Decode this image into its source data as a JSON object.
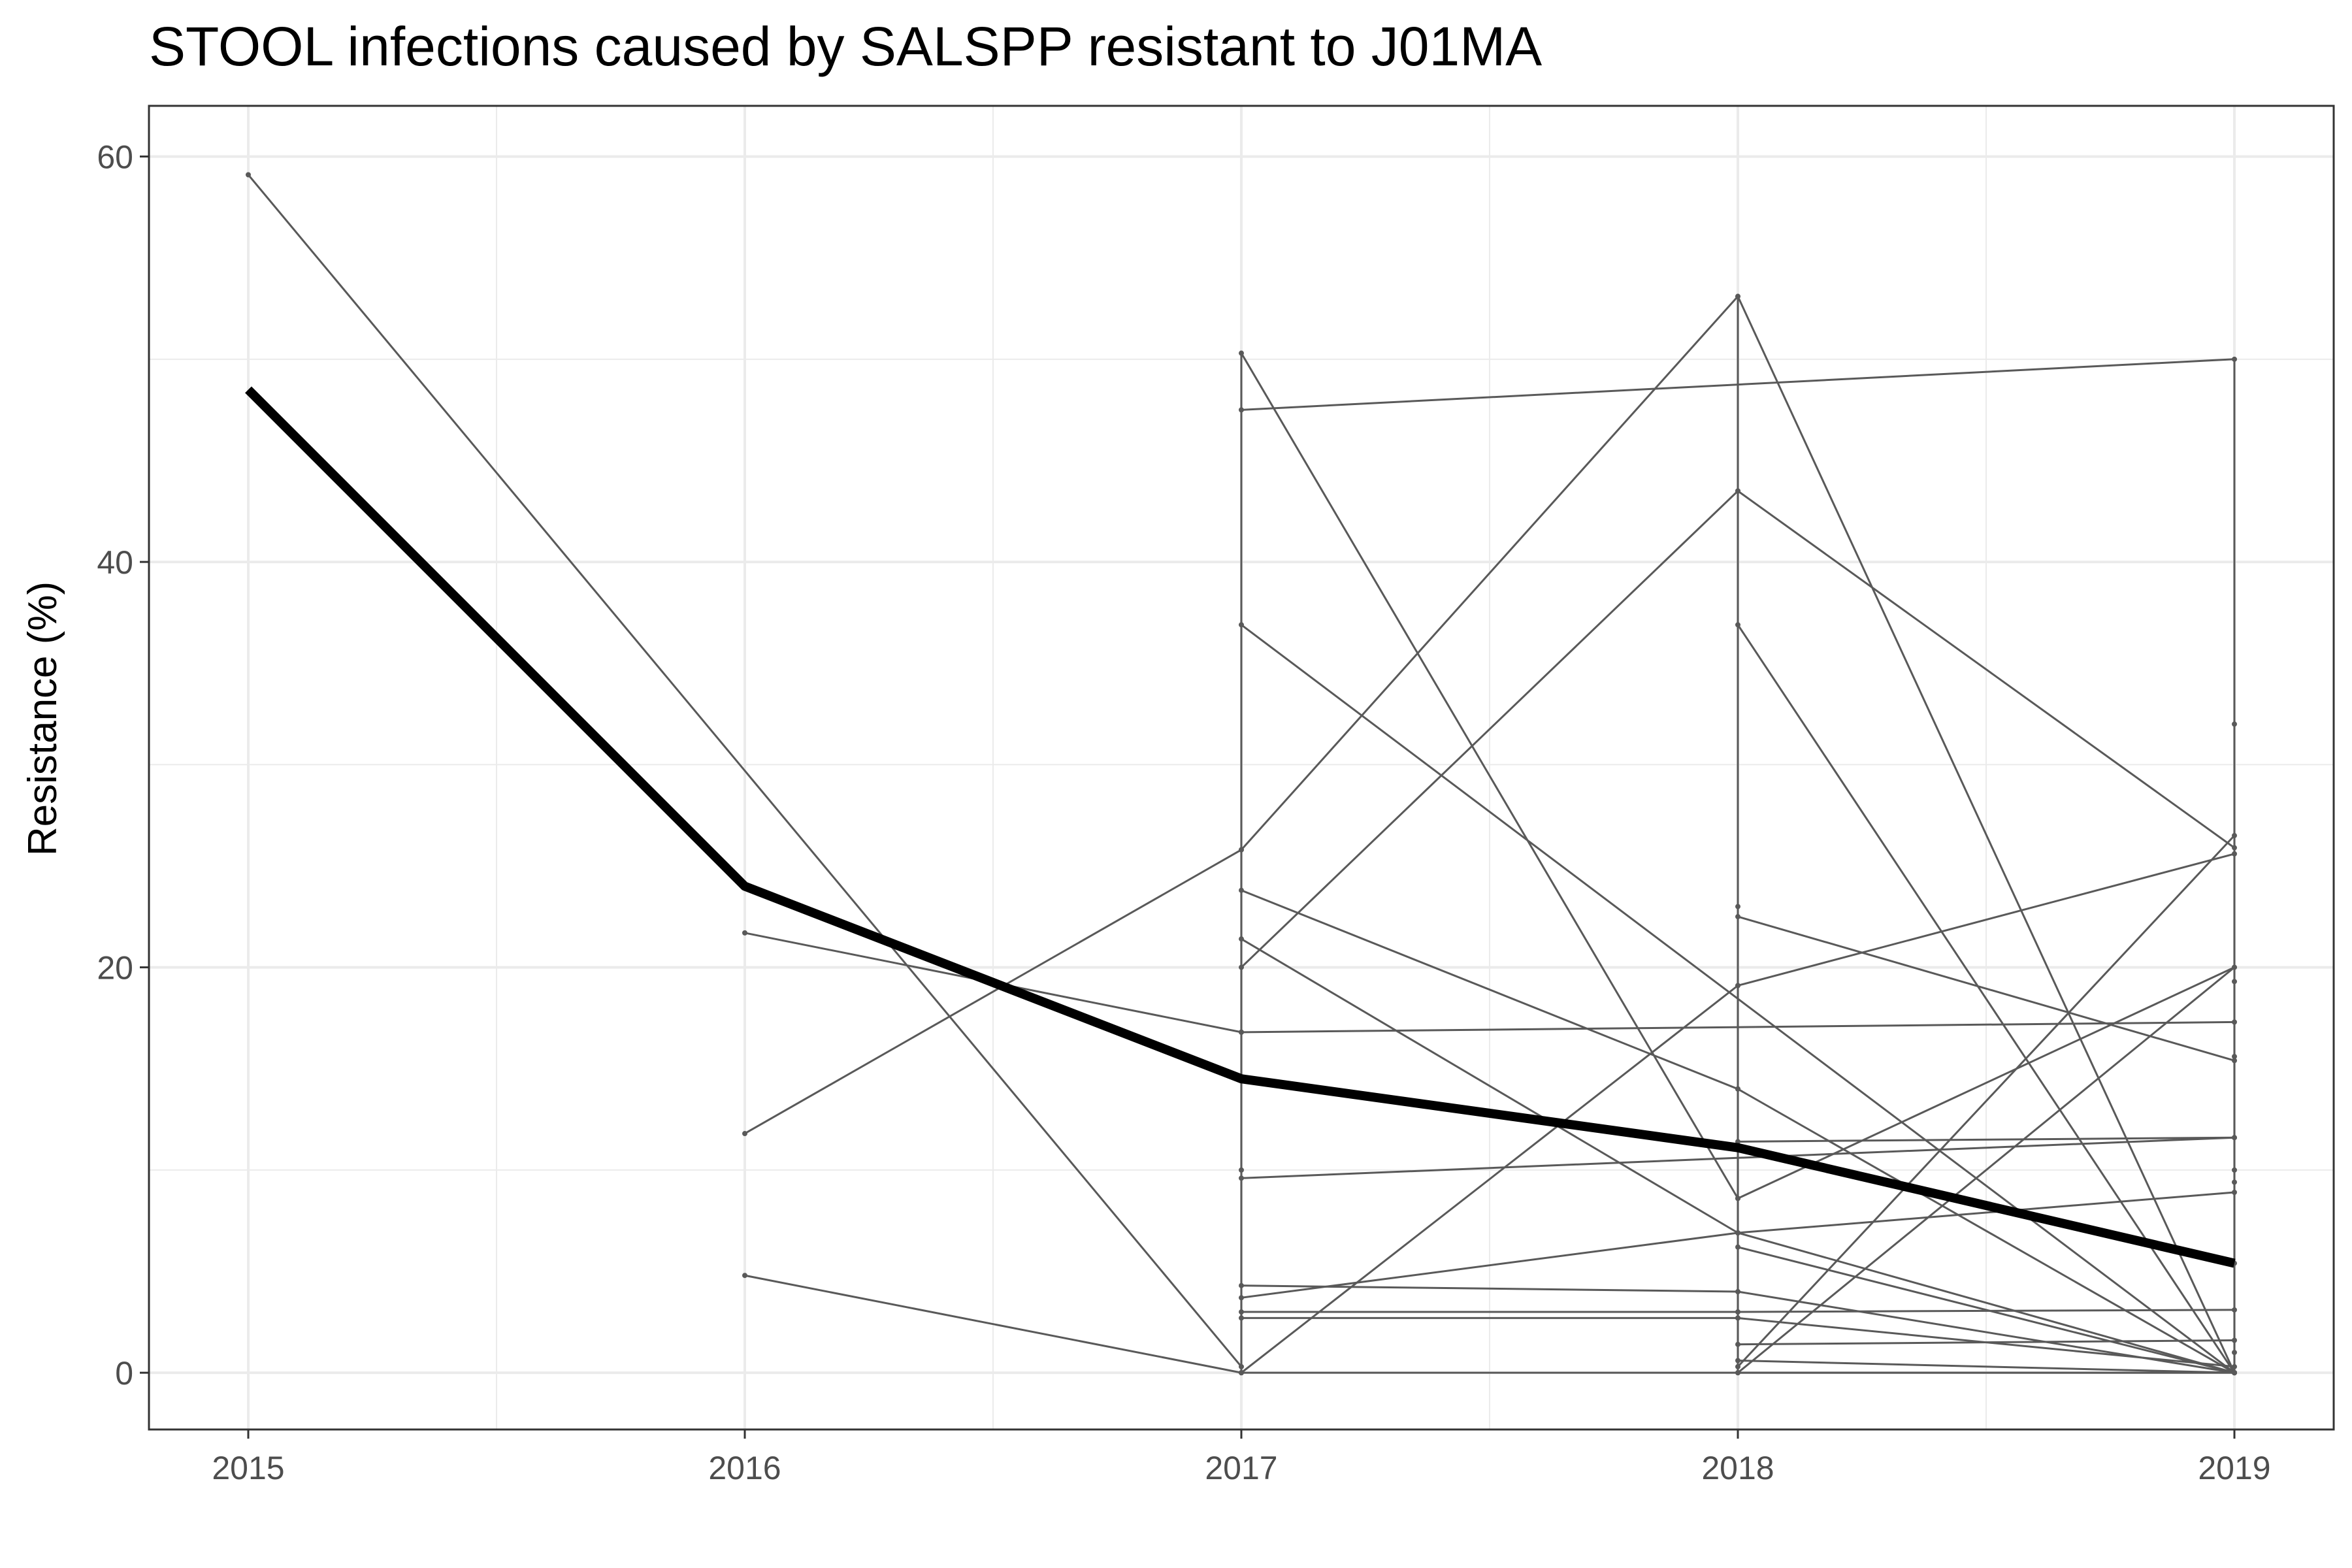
{
  "chart_data": {
    "type": "line",
    "title": "STOOL infections caused by SALSPP resistant to J01MA",
    "xlabel": "",
    "ylabel": "Resistance (%)",
    "xlim": [
      2014.8,
      2019.2
    ],
    "ylim": [
      -2.8,
      62.5
    ],
    "x_ticks": [
      2015,
      2016,
      2017,
      2018,
      2019
    ],
    "x_tick_labels": [
      "2015",
      "2016",
      "2017",
      "2018",
      "2019"
    ],
    "y_ticks": [
      0,
      20,
      40,
      60
    ],
    "y_tick_labels": [
      "0",
      "20",
      "40",
      "60"
    ],
    "grid": true,
    "legend": "none",
    "colors": {
      "series": "#595959",
      "overall": "#000000",
      "grid": "#ebebeb",
      "panel_border": "#333333"
    },
    "overall": {
      "x": [
        2015,
        2016,
        2017,
        2018,
        2019
      ],
      "values": [
        48.5,
        24.0,
        14.5,
        11.1,
        5.4
      ]
    },
    "series": [
      {
        "x": [
          2015,
          2017
        ],
        "values": [
          59.1,
          0.3
        ]
      },
      {
        "x": [
          2016,
          2017
        ],
        "values": [
          21.7,
          16.8
        ]
      },
      {
        "x": [
          2016,
          2017
        ],
        "values": [
          11.8,
          25.8
        ]
      },
      {
        "x": [
          2016,
          2017
        ],
        "values": [
          4.8,
          0.0
        ]
      },
      {
        "x": [
          2017,
          2019
        ],
        "values": [
          47.5,
          50.0
        ]
      },
      {
        "x": [
          2017,
          2018
        ],
        "values": [
          50.3,
          8.6
        ]
      },
      {
        "x": [
          2017,
          2018
        ],
        "values": [
          25.8,
          53.1
        ]
      },
      {
        "x": [
          2017,
          2018
        ],
        "values": [
          20.0,
          43.5
        ]
      },
      {
        "x": [
          2017,
          2019
        ],
        "values": [
          36.9,
          0.0
        ]
      },
      {
        "x": [
          2017,
          2018
        ],
        "values": [
          23.8,
          14.0
        ]
      },
      {
        "x": [
          2017,
          2018
        ],
        "values": [
          21.4,
          6.9
        ]
      },
      {
        "x": [
          2017,
          2019
        ],
        "values": [
          16.8,
          17.3
        ]
      },
      {
        "x": [
          2017,
          2019
        ],
        "values": [
          9.6,
          11.6
        ]
      },
      {
        "x": [
          2017,
          2018
        ],
        "values": [
          4.3,
          4.0
        ]
      },
      {
        "x": [
          2017,
          2018
        ],
        "values": [
          3.7,
          6.9
        ]
      },
      {
        "x": [
          2017,
          2018
        ],
        "values": [
          3.0,
          3.0
        ]
      },
      {
        "x": [
          2017,
          2018
        ],
        "values": [
          2.7,
          2.7
        ]
      },
      {
        "x": [
          2017,
          2018
        ],
        "values": [
          0.0,
          19.1
        ]
      },
      {
        "x": [
          2017,
          2019
        ],
        "values": [
          0.0,
          0.0
        ]
      },
      {
        "x": [
          2018,
          2019
        ],
        "values": [
          53.1,
          0.0
        ]
      },
      {
        "x": [
          2018,
          2019
        ],
        "values": [
          43.5,
          25.9
        ]
      },
      {
        "x": [
          2018,
          2019
        ],
        "values": [
          36.9,
          0.0
        ]
      },
      {
        "x": [
          2018,
          2019
        ],
        "values": [
          22.5,
          15.4
        ]
      },
      {
        "x": [
          2018,
          2019
        ],
        "values": [
          19.1,
          25.6
        ]
      },
      {
        "x": [
          2018,
          2019
        ],
        "values": [
          14.0,
          0.0
        ]
      },
      {
        "x": [
          2018,
          2019
        ],
        "values": [
          11.4,
          11.6
        ]
      },
      {
        "x": [
          2018,
          2019
        ],
        "values": [
          8.6,
          20.0
        ]
      },
      {
        "x": [
          2018,
          2019
        ],
        "values": [
          6.9,
          8.9
        ]
      },
      {
        "x": [
          2018,
          2019
        ],
        "values": [
          6.9,
          0.0
        ]
      },
      {
        "x": [
          2018,
          2019
        ],
        "values": [
          6.2,
          0.0
        ]
      },
      {
        "x": [
          2018,
          2019
        ],
        "values": [
          4.0,
          0.0
        ]
      },
      {
        "x": [
          2018,
          2019
        ],
        "values": [
          3.0,
          3.1
        ]
      },
      {
        "x": [
          2018,
          2019
        ],
        "values": [
          2.7,
          0.3
        ]
      },
      {
        "x": [
          2018,
          2019
        ],
        "values": [
          1.4,
          1.6
        ]
      },
      {
        "x": [
          2018,
          2019
        ],
        "values": [
          0.6,
          0.0
        ]
      },
      {
        "x": [
          2018,
          2019
        ],
        "values": [
          0.3,
          26.5
        ]
      },
      {
        "x": [
          2018,
          2019
        ],
        "values": [
          0.0,
          20.0
        ]
      },
      {
        "x": [
          2018,
          2019
        ],
        "values": [
          0.0,
          0.0
        ]
      }
    ],
    "vertical_ranges": [
      {
        "x": 2017,
        "values": [
          0.0,
          50.3
        ]
      },
      {
        "x": 2018,
        "values": [
          0.0,
          53.1
        ]
      },
      {
        "x": 2019,
        "values": [
          0.0,
          50.0
        ]
      }
    ],
    "extra_points": [
      {
        "x": 2017,
        "value": 10.0
      },
      {
        "x": 2018,
        "value": 23.0
      },
      {
        "x": 2019,
        "value": 32.0
      },
      {
        "x": 2019,
        "value": 19.3
      },
      {
        "x": 2019,
        "value": 15.6
      },
      {
        "x": 2019,
        "value": 10.0
      },
      {
        "x": 2019,
        "value": 9.4
      },
      {
        "x": 2019,
        "value": 5.4
      },
      {
        "x": 2019,
        "value": 1.0
      }
    ]
  }
}
